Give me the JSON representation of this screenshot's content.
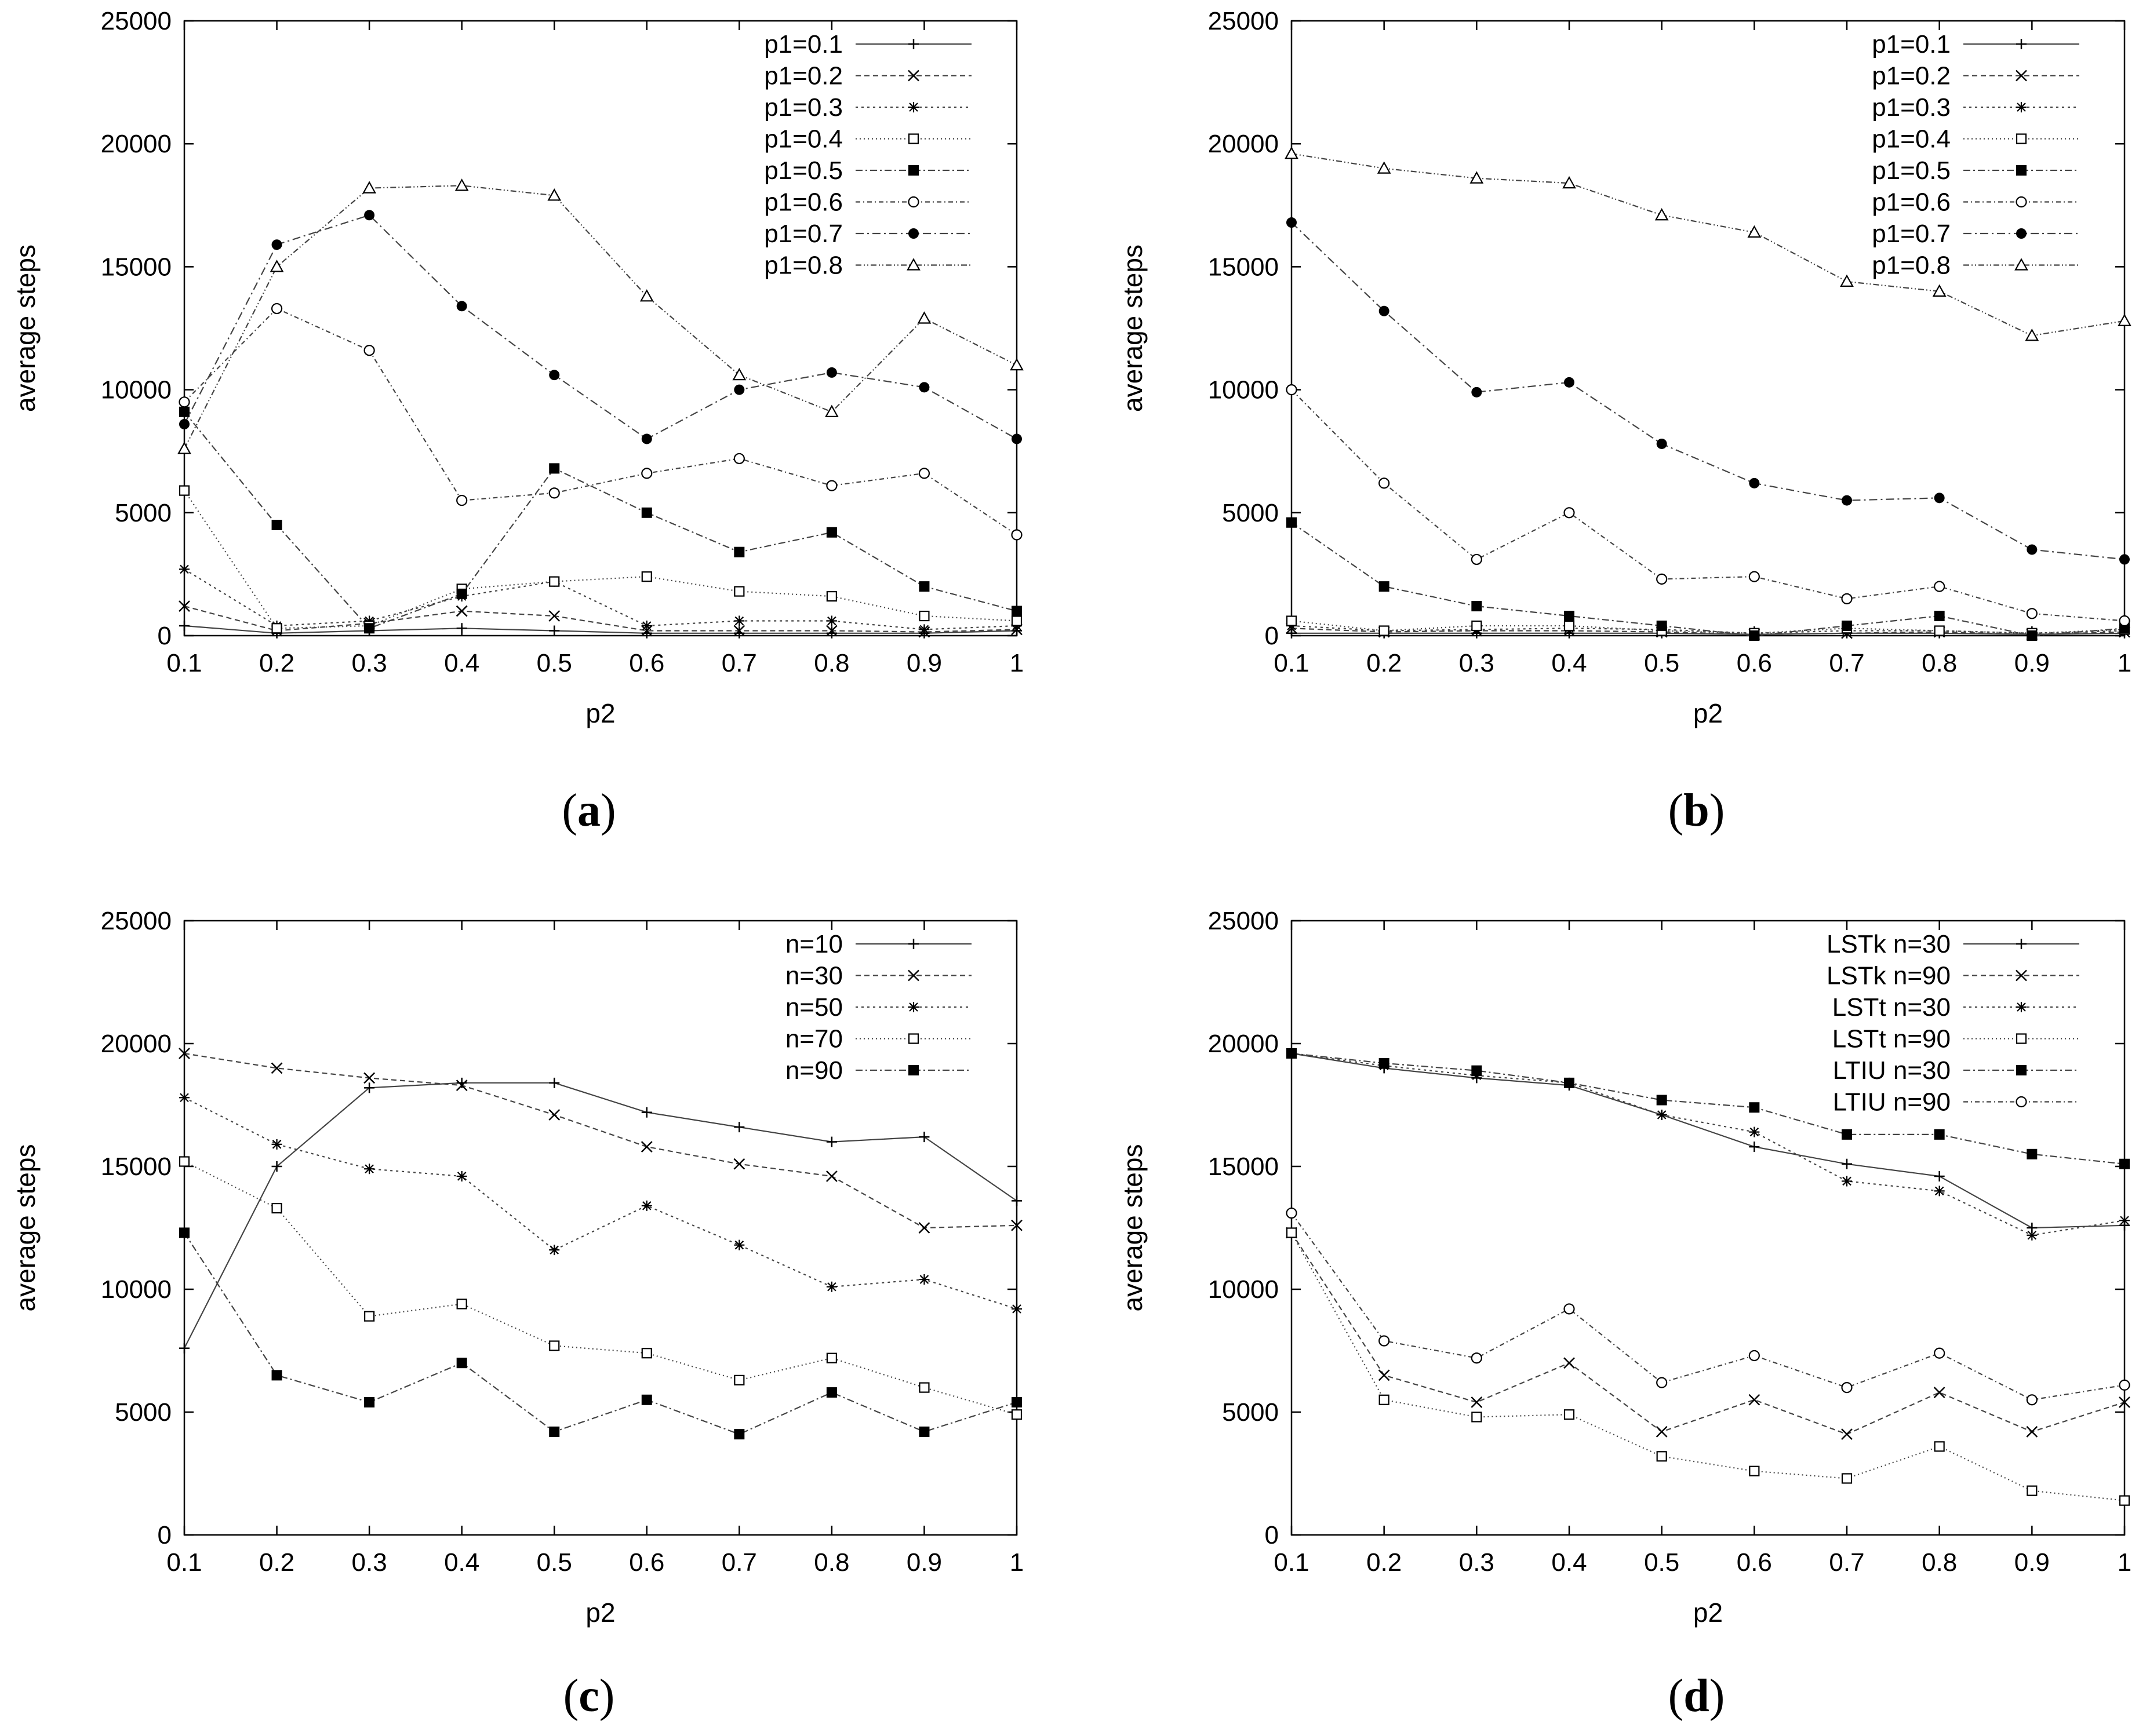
{
  "chart_data": [
    {
      "type": "line",
      "panel": "a",
      "caption": "a",
      "xlabel": "p2",
      "ylabel": "average steps",
      "xlim": [
        0.1,
        1
      ],
      "ylim": [
        0,
        25000
      ],
      "grid": false,
      "legend_position": "top-right",
      "x": [
        0.1,
        0.2,
        0.3,
        0.4,
        0.5,
        0.6,
        0.7,
        0.8,
        0.9,
        1
      ],
      "x_ticks": [
        "0.1",
        "0.2",
        "0.3",
        "0.4",
        "0.5",
        "0.6",
        "0.7",
        "0.8",
        "0.9",
        "1"
      ],
      "y_ticks": [
        "0",
        "5000",
        "10000",
        "15000",
        "20000",
        "25000"
      ],
      "series": [
        {
          "name": "p1=0.1",
          "marker": "plus",
          "dash": "",
          "values": [
            400,
            100,
            200,
            300,
            200,
            100,
            100,
            100,
            100,
            200
          ]
        },
        {
          "name": "p1=0.2",
          "marker": "x",
          "dash": "9 6",
          "values": [
            1200,
            200,
            500,
            1000,
            800,
            200,
            200,
            200,
            150,
            250
          ]
        },
        {
          "name": "p1=0.3",
          "marker": "star",
          "dash": "4 6",
          "values": [
            2700,
            400,
            600,
            1600,
            2200,
            400,
            600,
            600,
            250,
            400
          ]
        },
        {
          "name": "p1=0.4",
          "marker": "square-open",
          "dash": "2 5",
          "values": [
            5900,
            300,
            400,
            1900,
            2200,
            2400,
            1800,
            1600,
            800,
            600
          ]
        },
        {
          "name": "p1=0.5",
          "marker": "square-filled",
          "dash": "12 5 3 5",
          "values": [
            9100,
            4500,
            300,
            1700,
            6800,
            5000,
            3400,
            4200,
            2000,
            1000
          ]
        },
        {
          "name": "p1=0.6",
          "marker": "circle-open",
          "dash": "8 5 2 5",
          "values": [
            9500,
            13300,
            11600,
            5500,
            5800,
            6600,
            7200,
            6100,
            6600,
            4100
          ]
        },
        {
          "name": "p1=0.7",
          "marker": "circle-filled",
          "dash": "14 6 3 6",
          "values": [
            8600,
            15900,
            17100,
            13400,
            10600,
            8000,
            10000,
            10700,
            10100,
            8000
          ]
        },
        {
          "name": "p1=0.8",
          "marker": "triangle-open",
          "dash": "10 4 2 4 2 4",
          "values": [
            7600,
            15000,
            18200,
            18300,
            17900,
            13800,
            10600,
            9100,
            12900,
            11000
          ]
        }
      ]
    },
    {
      "type": "line",
      "panel": "b",
      "caption": "b",
      "xlabel": "p2",
      "ylabel": "average steps",
      "xlim": [
        0.1,
        1
      ],
      "ylim": [
        0,
        25000
      ],
      "grid": false,
      "legend_position": "top-right",
      "x": [
        0.1,
        0.2,
        0.3,
        0.4,
        0.5,
        0.6,
        0.7,
        0.8,
        0.9,
        1
      ],
      "x_ticks": [
        "0.1",
        "0.2",
        "0.3",
        "0.4",
        "0.5",
        "0.6",
        "0.7",
        "0.8",
        "0.9",
        "1"
      ],
      "y_ticks": [
        "0",
        "5000",
        "10000",
        "15000",
        "20000",
        "25000"
      ],
      "series": [
        {
          "name": "p1=0.1",
          "marker": "plus",
          "dash": "",
          "values": [
            100,
            100,
            100,
            100,
            100,
            50,
            100,
            100,
            50,
            100
          ]
        },
        {
          "name": "p1=0.2",
          "marker": "x",
          "dash": "9 6",
          "values": [
            300,
            150,
            200,
            200,
            150,
            50,
            100,
            150,
            50,
            150
          ]
        },
        {
          "name": "p1=0.3",
          "marker": "star",
          "dash": "4 6",
          "values": [
            400,
            200,
            250,
            300,
            250,
            100,
            200,
            200,
            100,
            200
          ]
        },
        {
          "name": "p1=0.4",
          "marker": "square-open",
          "dash": "2 5",
          "values": [
            600,
            200,
            400,
            400,
            200,
            100,
            300,
            200,
            100,
            250
          ]
        },
        {
          "name": "p1=0.5",
          "marker": "square-filled",
          "dash": "12 5 3 5",
          "values": [
            4600,
            2000,
            1200,
            800,
            400,
            0,
            400,
            800,
            0,
            300
          ]
        },
        {
          "name": "p1=0.6",
          "marker": "circle-open",
          "dash": "8 5 2 5",
          "values": [
            10000,
            6200,
            3100,
            5000,
            2300,
            2400,
            1500,
            2000,
            900,
            600
          ]
        },
        {
          "name": "p1=0.7",
          "marker": "circle-filled",
          "dash": "14 6 3 6",
          "values": [
            16800,
            13200,
            9900,
            10300,
            7800,
            6200,
            5500,
            5600,
            3500,
            3100
          ]
        },
        {
          "name": "p1=0.8",
          "marker": "triangle-open",
          "dash": "10 4 2 4 2 4",
          "values": [
            19600,
            19000,
            18600,
            18400,
            17100,
            16400,
            14400,
            14000,
            12200,
            12800
          ]
        }
      ]
    },
    {
      "type": "line",
      "panel": "c",
      "caption": "c",
      "xlabel": "p2",
      "ylabel": "average steps",
      "xlim": [
        0.1,
        1
      ],
      "ylim": [
        0,
        25000
      ],
      "grid": false,
      "legend_position": "top-right",
      "x": [
        0.1,
        0.2,
        0.3,
        0.4,
        0.5,
        0.6,
        0.7,
        0.8,
        0.9,
        1
      ],
      "x_ticks": [
        "0.1",
        "0.2",
        "0.3",
        "0.4",
        "0.5",
        "0.6",
        "0.7",
        "0.8",
        "0.9",
        "1"
      ],
      "y_ticks": [
        "0",
        "5000",
        "10000",
        "15000",
        "20000",
        "25000"
      ],
      "series": [
        {
          "name": "n=10",
          "marker": "plus",
          "dash": "",
          "values": [
            7600,
            15000,
            18200,
            18400,
            18400,
            17200,
            16600,
            16000,
            16200,
            13600
          ]
        },
        {
          "name": "n=30",
          "marker": "x",
          "dash": "9 6",
          "values": [
            19600,
            19000,
            18600,
            18300,
            17100,
            15800,
            15100,
            14600,
            12500,
            12600
          ]
        },
        {
          "name": "n=50",
          "marker": "star",
          "dash": "4 6",
          "values": [
            17800,
            15900,
            14900,
            14600,
            11600,
            13400,
            11800,
            10100,
            10400,
            9200
          ]
        },
        {
          "name": "n=70",
          "marker": "square-open",
          "dash": "2 5",
          "values": [
            15200,
            13300,
            8900,
            9400,
            7700,
            7400,
            6300,
            7200,
            6000,
            4900
          ]
        },
        {
          "name": "n=90",
          "marker": "square-filled",
          "dash": "12 5 3 5",
          "values": [
            12300,
            6500,
            5400,
            7000,
            4200,
            5500,
            4100,
            5800,
            4200,
            5400
          ]
        }
      ]
    },
    {
      "type": "line",
      "panel": "d",
      "caption": "d",
      "xlabel": "p2",
      "ylabel": "average steps",
      "xlim": [
        0.1,
        1
      ],
      "ylim": [
        0,
        25000
      ],
      "grid": false,
      "legend_position": "top-right",
      "x": [
        0.1,
        0.2,
        0.3,
        0.4,
        0.5,
        0.6,
        0.7,
        0.8,
        0.9,
        1
      ],
      "x_ticks": [
        "0.1",
        "0.2",
        "0.3",
        "0.4",
        "0.5",
        "0.6",
        "0.7",
        "0.8",
        "0.9",
        "1"
      ],
      "y_ticks": [
        "0",
        "5000",
        "10000",
        "15000",
        "20000",
        "25000"
      ],
      "series": [
        {
          "name": "LSTk n=30",
          "marker": "plus",
          "dash": "",
          "values": [
            19600,
            19000,
            18600,
            18300,
            17100,
            15800,
            15100,
            14600,
            12500,
            12600
          ]
        },
        {
          "name": "LSTk n=90",
          "marker": "x",
          "dash": "9 6",
          "values": [
            12300,
            6500,
            5400,
            7000,
            4200,
            5500,
            4100,
            5800,
            4200,
            5400
          ]
        },
        {
          "name": "LSTt n=30",
          "marker": "star",
          "dash": "4 6",
          "values": [
            19600,
            19100,
            18700,
            18400,
            17100,
            16400,
            14400,
            14000,
            12200,
            12800
          ]
        },
        {
          "name": "LSTt n=90",
          "marker": "square-open",
          "dash": "2 5",
          "values": [
            12300,
            5500,
            4800,
            4900,
            3200,
            2600,
            2300,
            3600,
            1800,
            1400
          ]
        },
        {
          "name": "LTIU n=30",
          "marker": "square-filled",
          "dash": "12 5 3 5",
          "values": [
            19600,
            19200,
            18900,
            18400,
            17700,
            17400,
            16300,
            16300,
            15500,
            15100
          ]
        },
        {
          "name": "LTIU n=90",
          "marker": "circle-open",
          "dash": "8 5 2 5",
          "values": [
            13100,
            7900,
            7200,
            9200,
            6200,
            7300,
            6000,
            7400,
            5500,
            6100
          ]
        }
      ]
    }
  ]
}
